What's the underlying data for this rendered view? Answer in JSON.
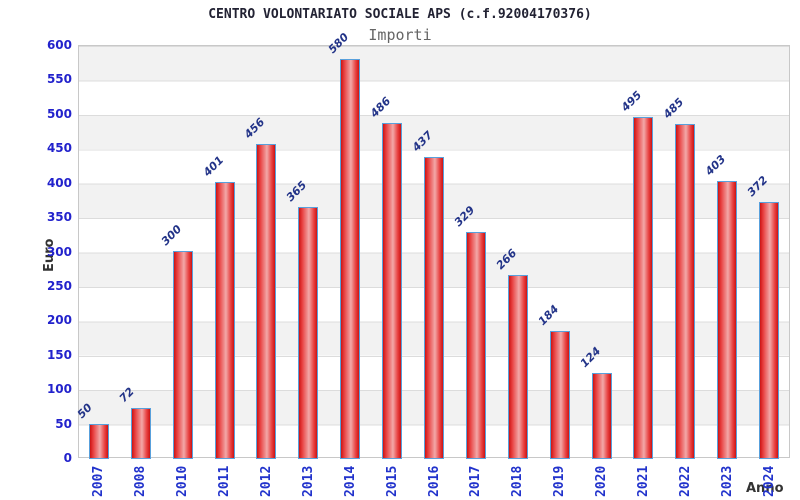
{
  "chart_data": {
    "type": "bar",
    "title": "CENTRO VOLONTARIATO SOCIALE APS (c.f.92004170376)",
    "subtitle": "Importi",
    "xlabel": "Anno",
    "ylabel": "Euro",
    "categories": [
      "2007",
      "2008",
      "2010",
      "2011",
      "2012",
      "2013",
      "2014",
      "2015",
      "2016",
      "2017",
      "2018",
      "2019",
      "2020",
      "2021",
      "2022",
      "2023",
      "2024"
    ],
    "values": [
      50,
      72,
      300,
      401,
      456,
      365,
      580,
      486,
      437,
      329,
      266,
      184,
      124,
      495,
      485,
      403,
      372
    ],
    "ylim": [
      0,
      600
    ],
    "ytick_step": 50,
    "grid": "horizontal-bands-alternating",
    "legend": "none",
    "colors": {
      "bar_fill_edge": "#cc1414",
      "bar_fill_bright": "#e84040",
      "bar_fill_center": "#f2a8a8",
      "bar_border": "#58a0dc",
      "y_tick_label": "#2222cc",
      "x_tick_label": "#2233cc",
      "value_label": "#223388",
      "band_fill": "#f2f2f2",
      "gridline": "#dcdcdc",
      "title_color": "#222233",
      "subtitle_color": "#666666",
      "axis_title_color": "#333333"
    }
  }
}
